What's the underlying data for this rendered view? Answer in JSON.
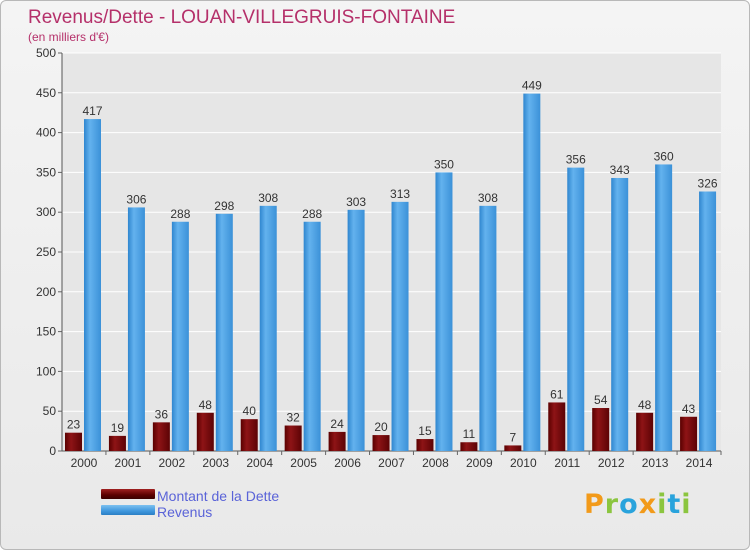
{
  "header": {
    "title": "Revenus/Dette - LOUAN-VILLEGRUIS-FONTAINE",
    "subtitle": "(en milliers d'€)"
  },
  "legend": {
    "items": [
      {
        "label": "Montant de la Dette",
        "color": "#6d0a0c"
      },
      {
        "label": "Revenus",
        "color": "#3f97dd"
      }
    ]
  },
  "logo": {
    "text": "Proxiti",
    "letters": [
      {
        "char": "P",
        "color": "#f29a1a"
      },
      {
        "char": "r",
        "color": "#8bc53f"
      },
      {
        "char": "o",
        "color": "#29a3dc"
      },
      {
        "char": "x",
        "color": "#f29a1a"
      },
      {
        "char": "i",
        "color": "#8bc53f"
      },
      {
        "char": "t",
        "color": "#29a3dc"
      },
      {
        "char": "i",
        "color": "#8bc53f"
      }
    ]
  },
  "chart_data": {
    "type": "bar",
    "title": "Revenus/Dette - LOUAN-VILLEGRUIS-FONTAINE",
    "subtitle": "(en milliers d'€)",
    "categories": [
      "2000",
      "2001",
      "2002",
      "2003",
      "2004",
      "2005",
      "2006",
      "2007",
      "2008",
      "2009",
      "2010",
      "2011",
      "2012",
      "2013",
      "2014"
    ],
    "series": [
      {
        "name": "Montant de la Dette",
        "color": "#6d0a0c",
        "values": [
          23,
          19,
          36,
          48,
          40,
          32,
          24,
          20,
          15,
          11,
          7,
          61,
          54,
          48,
          43
        ]
      },
      {
        "name": "Revenus",
        "color": "#3f97dd",
        "values": [
          417,
          306,
          288,
          298,
          308,
          288,
          303,
          313,
          350,
          308,
          449,
          356,
          343,
          360,
          326
        ]
      }
    ],
    "ylim": [
      0,
      500
    ],
    "yticks": [
      0,
      50,
      100,
      150,
      200,
      250,
      300,
      350,
      400,
      450,
      500
    ],
    "grid": true,
    "legend_position": "bottom-left"
  }
}
